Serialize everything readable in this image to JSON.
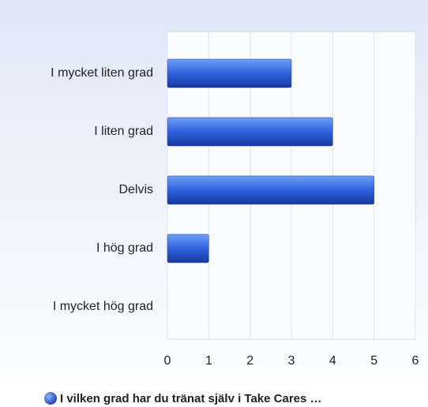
{
  "chart_data": {
    "type": "hbar",
    "categories": [
      "I mycket liten grad",
      "I liten grad",
      "Delvis",
      "I hög grad",
      "I mycket hög grad"
    ],
    "series": [
      {
        "name": "I vilken grad har du tränat själv i Take Cares …",
        "color": "#2456d6",
        "values": [
          3,
          4,
          5,
          1,
          0
        ]
      }
    ],
    "xlim": [
      0,
      6
    ],
    "xticks": [
      0,
      1,
      2,
      3,
      4,
      5,
      6
    ],
    "grid": true,
    "legend": "bottom"
  }
}
